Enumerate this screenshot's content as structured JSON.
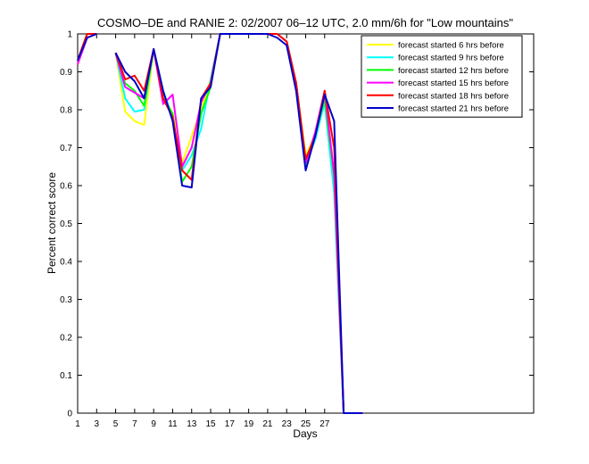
{
  "chart_data": {
    "type": "line",
    "title": "COSMO–DE and RANIE 2: 02/2007 06–12 UTC, 2.0 mm/6h for \"Low mountains\"",
    "xlabel": "Days",
    "ylabel": "Percent correct score",
    "xlim": [
      1,
      49
    ],
    "ylim": [
      0,
      1
    ],
    "xticks": [
      1,
      3,
      5,
      7,
      9,
      11,
      13,
      15,
      17,
      19,
      21,
      23,
      25,
      27
    ],
    "yticks": [
      0,
      0.1,
      0.2,
      0.3,
      0.4,
      0.5,
      0.6,
      0.7,
      0.8,
      0.9,
      1
    ],
    "ytick_labels": [
      "0",
      "0.1",
      "0.2",
      "0.3",
      "0.4",
      "0.5",
      "0.6",
      "0.7",
      "0.8",
      "0.9",
      "1"
    ],
    "grid": false,
    "legend_position": "top-right",
    "series": [
      {
        "name": "forecast started 6 hrs before",
        "color": "#ffff00",
        "points": [
          [
            1,
            0.92
          ],
          [
            2,
            0.99
          ],
          [
            3,
            1.0
          ],
          null,
          [
            5,
            0.95
          ],
          [
            6,
            0.795
          ],
          [
            7,
            0.77
          ],
          [
            8,
            0.76
          ],
          [
            9,
            0.96
          ],
          [
            10,
            0.84
          ],
          [
            11,
            0.79
          ],
          [
            12,
            0.66
          ],
          [
            13,
            0.73
          ],
          [
            14,
            0.8
          ],
          [
            15,
            0.88
          ],
          [
            16,
            1.0
          ],
          [
            17,
            1.0
          ],
          [
            18,
            1.0
          ],
          [
            19,
            1.0
          ],
          [
            20,
            1.0
          ],
          [
            21,
            1.0
          ],
          [
            22,
            1.0
          ],
          [
            23,
            0.98
          ],
          [
            24,
            0.87
          ],
          [
            25,
            0.68
          ],
          [
            26,
            0.73
          ],
          [
            27,
            0.85
          ],
          [
            28,
            0.6
          ],
          [
            29,
            0.0
          ],
          [
            30,
            0.0
          ],
          [
            31,
            0.0
          ]
        ]
      },
      {
        "name": "forecast started 9 hrs before",
        "color": "#00ffff",
        "points": [
          [
            1,
            0.93
          ],
          [
            2,
            1.0
          ],
          [
            3,
            1.0
          ],
          null,
          [
            5,
            0.95
          ],
          [
            6,
            0.83
          ],
          [
            7,
            0.795
          ],
          [
            8,
            0.8
          ],
          [
            9,
            0.96
          ],
          [
            10,
            0.85
          ],
          [
            11,
            0.78
          ],
          [
            12,
            0.64
          ],
          [
            13,
            0.68
          ],
          [
            14,
            0.75
          ],
          [
            15,
            0.88
          ],
          [
            16,
            1.0
          ],
          [
            17,
            1.0
          ],
          [
            18,
            1.0
          ],
          [
            19,
            1.0
          ],
          [
            20,
            1.0
          ],
          [
            21,
            1.0
          ],
          [
            22,
            1.0
          ],
          [
            23,
            0.98
          ],
          [
            24,
            0.87
          ],
          [
            25,
            0.66
          ],
          [
            26,
            0.72
          ],
          [
            27,
            0.82
          ],
          [
            28,
            0.58
          ],
          [
            29,
            0.0
          ],
          [
            30,
            0.0
          ],
          [
            31,
            0.0
          ]
        ]
      },
      {
        "name": "forecast started 12 hrs before",
        "color": "#00ff00",
        "points": [
          [
            1,
            0.93
          ],
          [
            2,
            1.0
          ],
          [
            3,
            1.0
          ],
          null,
          [
            5,
            0.95
          ],
          [
            6,
            0.87
          ],
          [
            7,
            0.85
          ],
          [
            8,
            0.81
          ],
          [
            9,
            0.96
          ],
          [
            10,
            0.83
          ],
          [
            11,
            0.79
          ],
          [
            12,
            0.61
          ],
          [
            13,
            0.65
          ],
          [
            14,
            0.79
          ],
          [
            15,
            0.86
          ],
          [
            16,
            1.0
          ],
          [
            17,
            1.0
          ],
          [
            18,
            1.0
          ],
          [
            19,
            1.0
          ],
          [
            20,
            1.0
          ],
          [
            21,
            1.0
          ],
          [
            22,
            1.0
          ],
          [
            23,
            0.98
          ],
          [
            24,
            0.87
          ],
          [
            25,
            0.65
          ],
          [
            26,
            0.73
          ],
          [
            27,
            0.83
          ],
          [
            28,
            0.62
          ],
          [
            29,
            0.0
          ],
          [
            30,
            0.0
          ],
          [
            31,
            0.0
          ]
        ]
      },
      {
        "name": "forecast started 15 hrs before",
        "color": "#ff00ff",
        "points": [
          [
            1,
            0.92
          ],
          [
            2,
            0.99
          ],
          [
            3,
            1.0
          ],
          null,
          [
            5,
            0.95
          ],
          [
            6,
            0.86
          ],
          [
            7,
            0.845
          ],
          [
            8,
            0.83
          ],
          [
            9,
            0.96
          ],
          [
            10,
            0.815
          ],
          [
            11,
            0.84
          ],
          [
            12,
            0.65
          ],
          [
            13,
            0.7
          ],
          [
            14,
            0.82
          ],
          [
            15,
            0.87
          ],
          [
            16,
            1.0
          ],
          [
            17,
            1.0
          ],
          [
            18,
            1.0
          ],
          [
            19,
            1.0
          ],
          [
            20,
            1.0
          ],
          [
            21,
            1.0
          ],
          [
            22,
            1.0
          ],
          [
            23,
            0.98
          ],
          [
            24,
            0.87
          ],
          [
            25,
            0.66
          ],
          [
            26,
            0.74
          ],
          [
            27,
            0.85
          ],
          [
            28,
            0.63
          ],
          [
            29,
            0.0
          ],
          [
            30,
            0.0
          ],
          [
            31,
            0.0
          ]
        ]
      },
      {
        "name": "forecast started 18 hrs before",
        "color": "#ff0000",
        "points": [
          [
            1,
            0.93
          ],
          [
            2,
            1.0
          ],
          [
            3,
            1.0
          ],
          null,
          [
            5,
            0.95
          ],
          [
            6,
            0.88
          ],
          [
            7,
            0.89
          ],
          [
            8,
            0.85
          ],
          [
            9,
            0.96
          ],
          [
            10,
            0.83
          ],
          [
            11,
            0.78
          ],
          [
            12,
            0.64
          ],
          [
            13,
            0.615
          ],
          [
            14,
            0.83
          ],
          [
            15,
            0.87
          ],
          [
            16,
            1.0
          ],
          [
            17,
            1.0
          ],
          [
            18,
            1.0
          ],
          [
            19,
            1.0
          ],
          [
            20,
            1.0
          ],
          [
            21,
            1.0
          ],
          [
            22,
            1.0
          ],
          [
            23,
            0.98
          ],
          [
            24,
            0.87
          ],
          [
            25,
            0.67
          ],
          [
            26,
            0.73
          ],
          [
            27,
            0.85
          ],
          [
            28,
            0.7
          ],
          [
            29,
            0.0
          ],
          [
            30,
            0.0
          ],
          [
            31,
            0.0
          ]
        ]
      },
      {
        "name": "forecast started 21 hrs before",
        "color": "#0000cc",
        "points": [
          [
            1,
            0.93
          ],
          [
            2,
            0.99
          ],
          [
            3,
            1.0
          ],
          null,
          [
            5,
            0.95
          ],
          [
            6,
            0.9
          ],
          [
            7,
            0.875
          ],
          [
            8,
            0.83
          ],
          [
            9,
            0.96
          ],
          [
            10,
            0.85
          ],
          [
            11,
            0.77
          ],
          [
            12,
            0.6
          ],
          [
            13,
            0.595
          ],
          [
            14,
            0.83
          ],
          [
            15,
            0.86
          ],
          [
            16,
            1.0
          ],
          [
            17,
            1.0
          ],
          [
            18,
            1.0
          ],
          [
            19,
            1.0
          ],
          [
            20,
            1.0
          ],
          [
            21,
            1.0
          ],
          [
            22,
            0.99
          ],
          [
            23,
            0.97
          ],
          [
            24,
            0.85
          ],
          [
            25,
            0.64
          ],
          [
            26,
            0.73
          ],
          [
            27,
            0.84
          ],
          [
            28,
            0.77
          ],
          [
            29,
            0.0
          ],
          [
            30,
            0.0
          ],
          [
            31,
            0.0
          ]
        ]
      }
    ]
  }
}
